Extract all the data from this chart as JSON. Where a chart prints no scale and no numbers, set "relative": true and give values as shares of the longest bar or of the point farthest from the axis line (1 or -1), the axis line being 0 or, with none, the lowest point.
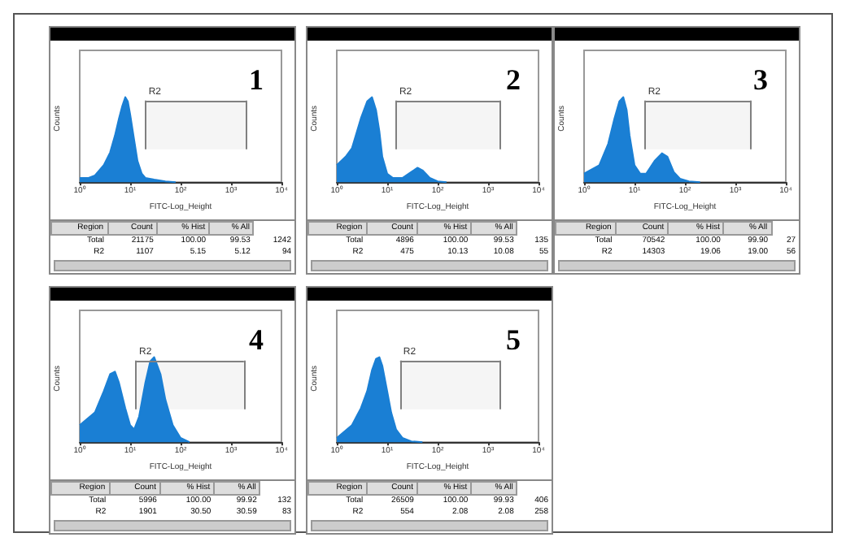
{
  "chart_data": [
    {
      "type": "area",
      "title": "1",
      "xlabel": "FITC-Log_Height",
      "ylabel": "Counts",
      "relative": true,
      "tick_labels": "x",
      "log": "x",
      "xlim": [
        1,
        10000
      ],
      "xticks": [
        {
          "value": 1,
          "label": "10⁰"
        },
        {
          "value": 10,
          "label": "10¹"
        },
        {
          "value": 100,
          "label": "10²"
        },
        {
          "value": 1000,
          "label": "10³"
        },
        {
          "value": 10000,
          "label": "10⁴"
        }
      ],
      "series": [
        {
          "color": "#1a7fd4",
          "x": [
            1,
            1.5,
            2,
            3,
            4,
            5,
            6,
            7,
            8,
            9,
            10,
            12,
            14,
            17,
            20,
            30,
            50,
            80
          ],
          "values": [
            0.05,
            0.05,
            0.08,
            0.2,
            0.35,
            0.55,
            0.75,
            0.9,
            1,
            0.95,
            0.8,
            0.5,
            0.25,
            0.1,
            0.05,
            0.03,
            0.01,
            0
          ]
        }
      ],
      "bands": [
        {
          "axis": "x",
          "from": 20,
          "to": 2000,
          "label": "R2",
          "color": "#808080"
        }
      ],
      "annotations": [
        "Region",
        "Count",
        "% Hist",
        "% All",
        "Total",
        "21175",
        "100.00",
        "99.53",
        "1242",
        "R2",
        "1107",
        "5.15",
        "5.12",
        "94"
      ]
    },
    {
      "type": "area",
      "title": "2",
      "xlabel": "FITC-Log_Height",
      "ylabel": "Counts",
      "relative": true,
      "tick_labels": "x",
      "log": "x",
      "xlim": [
        1,
        10000
      ],
      "xticks": [
        {
          "value": 1,
          "label": "10⁰"
        },
        {
          "value": 10,
          "label": "10¹"
        },
        {
          "value": 100,
          "label": "10²"
        },
        {
          "value": 1000,
          "label": "10³"
        },
        {
          "value": 10000,
          "label": "10⁴"
        }
      ],
      "series": [
        {
          "color": "#1a7fd4",
          "x": [
            1,
            1.5,
            2,
            3,
            4,
            5,
            6,
            7,
            8,
            10,
            13,
            20,
            30,
            40,
            50,
            70,
            100,
            150
          ],
          "values": [
            0.2,
            0.3,
            0.4,
            0.75,
            0.95,
            1,
            0.85,
            0.6,
            0.3,
            0.1,
            0.05,
            0.05,
            0.12,
            0.17,
            0.14,
            0.05,
            0.01,
            0
          ]
        }
      ],
      "bands": [
        {
          "axis": "x",
          "from": 15,
          "to": 1700,
          "label": "R2",
          "color": "#808080"
        }
      ],
      "annotations": [
        "Region",
        "Count",
        "% Hist",
        "% All",
        "Total",
        "4896",
        "100.00",
        "99.53",
        "135",
        "R2",
        "475",
        "10.13",
        "10.08",
        "55"
      ]
    },
    {
      "type": "area",
      "title": "3",
      "xlabel": "FITC-Log_Height",
      "ylabel": "Counts",
      "relative": true,
      "tick_labels": "x",
      "log": "x",
      "xlim": [
        1,
        10000
      ],
      "xticks": [
        {
          "value": 1,
          "label": "10⁰"
        },
        {
          "value": 10,
          "label": "10¹"
        },
        {
          "value": 100,
          "label": "10²"
        },
        {
          "value": 1000,
          "label": "10³"
        },
        {
          "value": 10000,
          "label": "10⁴"
        }
      ],
      "series": [
        {
          "color": "#1a7fd4",
          "x": [
            1,
            2,
            3,
            4,
            5,
            6,
            7,
            8,
            10,
            13,
            17,
            25,
            35,
            45,
            60,
            80,
            120,
            200
          ],
          "values": [
            0.1,
            0.2,
            0.45,
            0.75,
            0.95,
            1,
            0.85,
            0.55,
            0.2,
            0.1,
            0.1,
            0.25,
            0.34,
            0.3,
            0.12,
            0.04,
            0.01,
            0
          ]
        }
      ],
      "bands": [
        {
          "axis": "x",
          "from": 16,
          "to": 2000,
          "label": "R2",
          "color": "#808080"
        }
      ],
      "annotations": [
        "Region",
        "Count",
        "% Hist",
        "% All",
        "Total",
        "70542",
        "100.00",
        "99.90",
        "27",
        "R2",
        "14303",
        "19.06",
        "19.00",
        "56"
      ]
    },
    {
      "type": "area",
      "title": "4",
      "xlabel": "FITC-Log_Height",
      "ylabel": "Counts",
      "relative": true,
      "tick_labels": "x",
      "log": "x",
      "xlim": [
        1,
        10000
      ],
      "xticks": [
        {
          "value": 1,
          "label": "10⁰"
        },
        {
          "value": 10,
          "label": "10¹"
        },
        {
          "value": 100,
          "label": "10²"
        },
        {
          "value": 1000,
          "label": "10³"
        },
        {
          "value": 10000,
          "label": "10⁴"
        }
      ],
      "series": [
        {
          "color": "#1a7fd4",
          "x": [
            1,
            2,
            3,
            4,
            5,
            6,
            8,
            10,
            12,
            15,
            20,
            25,
            30,
            40,
            50,
            70,
            100,
            150
          ],
          "values": [
            0.2,
            0.35,
            0.6,
            0.8,
            0.83,
            0.7,
            0.4,
            0.2,
            0.15,
            0.3,
            0.7,
            0.95,
            1,
            0.8,
            0.5,
            0.2,
            0.05,
            0
          ]
        }
      ],
      "bands": [
        {
          "axis": "x",
          "from": 13,
          "to": 1800,
          "label": "R2",
          "color": "#808080"
        }
      ],
      "annotations": [
        "Region",
        "Count",
        "% Hist",
        "% All",
        "Total",
        "5996",
        "100.00",
        "99.92",
        "132",
        "R2",
        "1901",
        "30.50",
        "30.59",
        "83"
      ]
    },
    {
      "type": "area",
      "title": "5",
      "xlabel": "FITC-Log_Height",
      "ylabel": "Counts",
      "relative": true,
      "tick_labels": "x",
      "log": "x",
      "xlim": [
        1,
        10000
      ],
      "xticks": [
        {
          "value": 1,
          "label": "10⁰"
        },
        {
          "value": 10,
          "label": "10¹"
        },
        {
          "value": 100,
          "label": "10²"
        },
        {
          "value": 1000,
          "label": "10³"
        },
        {
          "value": 10000,
          "label": "10⁴"
        }
      ],
      "series": [
        {
          "color": "#1a7fd4",
          "x": [
            1,
            2,
            3,
            4,
            5,
            6,
            7,
            8,
            10,
            12,
            15,
            20,
            30,
            50
          ],
          "values": [
            0.05,
            0.2,
            0.4,
            0.6,
            0.85,
            0.98,
            1,
            0.9,
            0.6,
            0.35,
            0.15,
            0.05,
            0.01,
            0
          ]
        }
      ],
      "bands": [
        {
          "axis": "x",
          "from": 18,
          "to": 1700,
          "label": "R2",
          "color": "#808080"
        }
      ],
      "annotations": [
        "Region",
        "Count",
        "% Hist",
        "% All",
        "Total",
        "26509",
        "100.00",
        "99.93",
        "406",
        "R2",
        "554",
        "2.08",
        "2.08",
        "258"
      ]
    }
  ]
}
